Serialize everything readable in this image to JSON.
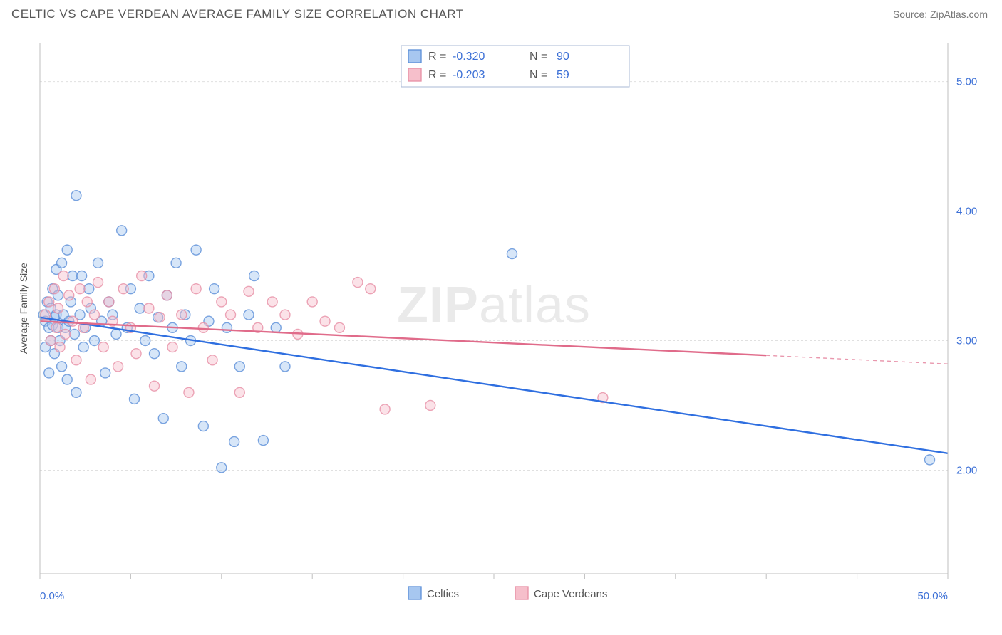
{
  "header": {
    "title": "CELTIC VS CAPE VERDEAN AVERAGE FAMILY SIZE CORRELATION CHART",
    "source_label": "Source: ZipAtlas.com"
  },
  "watermark": {
    "line1": "ZIP",
    "line2": "atlas"
  },
  "chart": {
    "type": "scatter",
    "background_color": "#ffffff",
    "plot_border_color": "#bfbfbf",
    "grid_color": "#e0e0e0",
    "grid_dash": "3,3",
    "xlim": [
      0,
      50
    ],
    "ylim": [
      1.2,
      5.3
    ],
    "y_ticks": [
      2.0,
      3.0,
      4.0,
      5.0
    ],
    "y_tick_labels": [
      "2.00",
      "3.00",
      "4.00",
      "5.00"
    ],
    "x_minor_ticks": [
      0,
      5,
      10,
      15,
      20,
      25,
      30,
      35,
      40,
      45,
      50
    ],
    "x_tick_labels_min": "0.0%",
    "x_tick_labels_max": "50.0%",
    "y_axis_label": "Average Family Size",
    "marker_radius": 7,
    "marker_opacity": 0.45,
    "marker_stroke_width": 1.4,
    "line_width": 2.4
  },
  "series": [
    {
      "name": "Celtics",
      "fill_color": "#a7c7f0",
      "stroke_color": "#5b8fd8",
      "line_color": "#2f6fe0",
      "R_label": "R =",
      "R_value": "-0.320",
      "N_label": "N =",
      "N_value": "90",
      "trend": {
        "x1": 0,
        "y1": 3.18,
        "x2": 50,
        "y2": 2.13,
        "x_data_end": 50
      },
      "points": [
        [
          0.2,
          3.2
        ],
        [
          0.3,
          3.15
        ],
        [
          0.3,
          2.95
        ],
        [
          0.4,
          3.3
        ],
        [
          0.5,
          2.75
        ],
        [
          0.5,
          3.1
        ],
        [
          0.6,
          3.25
        ],
        [
          0.6,
          3.0
        ],
        [
          0.7,
          3.4
        ],
        [
          0.7,
          3.12
        ],
        [
          0.8,
          3.18
        ],
        [
          0.8,
          2.9
        ],
        [
          0.9,
          3.55
        ],
        [
          0.9,
          3.2
        ],
        [
          1.0,
          3.1
        ],
        [
          1.0,
          3.35
        ],
        [
          1.1,
          3.0
        ],
        [
          1.2,
          3.6
        ],
        [
          1.2,
          2.8
        ],
        [
          1.3,
          3.2
        ],
        [
          1.4,
          3.1
        ],
        [
          1.5,
          3.7
        ],
        [
          1.5,
          2.7
        ],
        [
          1.6,
          3.15
        ],
        [
          1.7,
          3.3
        ],
        [
          1.8,
          3.5
        ],
        [
          1.9,
          3.05
        ],
        [
          2.0,
          2.6
        ],
        [
          2.0,
          4.12
        ],
        [
          2.2,
          3.2
        ],
        [
          2.3,
          3.5
        ],
        [
          2.4,
          2.95
        ],
        [
          2.5,
          3.1
        ],
        [
          2.7,
          3.4
        ],
        [
          2.8,
          3.25
        ],
        [
          3.0,
          3.0
        ],
        [
          3.2,
          3.6
        ],
        [
          3.4,
          3.15
        ],
        [
          3.6,
          2.75
        ],
        [
          3.8,
          3.3
        ],
        [
          4.0,
          3.2
        ],
        [
          4.2,
          3.05
        ],
        [
          4.5,
          3.85
        ],
        [
          4.8,
          3.1
        ],
        [
          5.0,
          3.4
        ],
        [
          5.2,
          2.55
        ],
        [
          5.5,
          3.25
        ],
        [
          5.8,
          3.0
        ],
        [
          6.0,
          3.5
        ],
        [
          6.3,
          2.9
        ],
        [
          6.5,
          3.18
        ],
        [
          6.8,
          2.4
        ],
        [
          7.0,
          3.35
        ],
        [
          7.3,
          3.1
        ],
        [
          7.5,
          3.6
        ],
        [
          7.8,
          2.8
        ],
        [
          8.0,
          3.2
        ],
        [
          8.3,
          3.0
        ],
        [
          8.6,
          3.7
        ],
        [
          9.0,
          2.34
        ],
        [
          9.3,
          3.15
        ],
        [
          9.6,
          3.4
        ],
        [
          10.0,
          2.02
        ],
        [
          10.3,
          3.1
        ],
        [
          10.7,
          2.22
        ],
        [
          11.0,
          2.8
        ],
        [
          11.5,
          3.2
        ],
        [
          11.8,
          3.5
        ],
        [
          12.3,
          2.23
        ],
        [
          13.0,
          3.1
        ],
        [
          13.5,
          2.8
        ],
        [
          26.0,
          3.67
        ],
        [
          49.0,
          2.08
        ]
      ]
    },
    {
      "name": "Cape Verdeans",
      "fill_color": "#f6bfcb",
      "stroke_color": "#e78fa5",
      "line_color": "#e06b8a",
      "R_label": "R =",
      "R_value": "-0.203",
      "N_label": "N =",
      "N_value": "59",
      "trend": {
        "x1": 0,
        "y1": 3.15,
        "x2": 50,
        "y2": 2.82,
        "x_data_end": 40
      },
      "points": [
        [
          0.3,
          3.2
        ],
        [
          0.5,
          3.3
        ],
        [
          0.6,
          3.0
        ],
        [
          0.8,
          3.4
        ],
        [
          0.9,
          3.1
        ],
        [
          1.0,
          3.25
        ],
        [
          1.1,
          2.95
        ],
        [
          1.3,
          3.5
        ],
        [
          1.4,
          3.05
        ],
        [
          1.6,
          3.35
        ],
        [
          1.8,
          3.15
        ],
        [
          2.0,
          2.85
        ],
        [
          2.2,
          3.4
        ],
        [
          2.4,
          3.1
        ],
        [
          2.6,
          3.3
        ],
        [
          2.8,
          2.7
        ],
        [
          3.0,
          3.2
        ],
        [
          3.2,
          3.45
        ],
        [
          3.5,
          2.95
        ],
        [
          3.8,
          3.3
        ],
        [
          4.0,
          3.15
        ],
        [
          4.3,
          2.8
        ],
        [
          4.6,
          3.4
        ],
        [
          5.0,
          3.1
        ],
        [
          5.3,
          2.9
        ],
        [
          5.6,
          3.5
        ],
        [
          6.0,
          3.25
        ],
        [
          6.3,
          2.65
        ],
        [
          6.6,
          3.18
        ],
        [
          7.0,
          3.35
        ],
        [
          7.3,
          2.95
        ],
        [
          7.8,
          3.2
        ],
        [
          8.2,
          2.6
        ],
        [
          8.6,
          3.4
        ],
        [
          9.0,
          3.1
        ],
        [
          9.5,
          2.85
        ],
        [
          10.0,
          3.3
        ],
        [
          10.5,
          3.2
        ],
        [
          11.0,
          2.6
        ],
        [
          11.5,
          3.38
        ],
        [
          12.0,
          3.1
        ],
        [
          12.8,
          3.3
        ],
        [
          13.5,
          3.2
        ],
        [
          14.2,
          3.05
        ],
        [
          15.0,
          3.3
        ],
        [
          15.7,
          3.15
        ],
        [
          16.5,
          3.1
        ],
        [
          17.5,
          3.45
        ],
        [
          18.2,
          3.4
        ],
        [
          19.0,
          2.47
        ],
        [
          21.5,
          2.5
        ],
        [
          31.0,
          2.56
        ]
      ]
    }
  ],
  "legend": {
    "box_stroke": "#bfbfbf",
    "box_fill": "#ffffff"
  },
  "stats_box": {
    "stroke": "#a9b9d6",
    "fill": "#ffffff"
  }
}
